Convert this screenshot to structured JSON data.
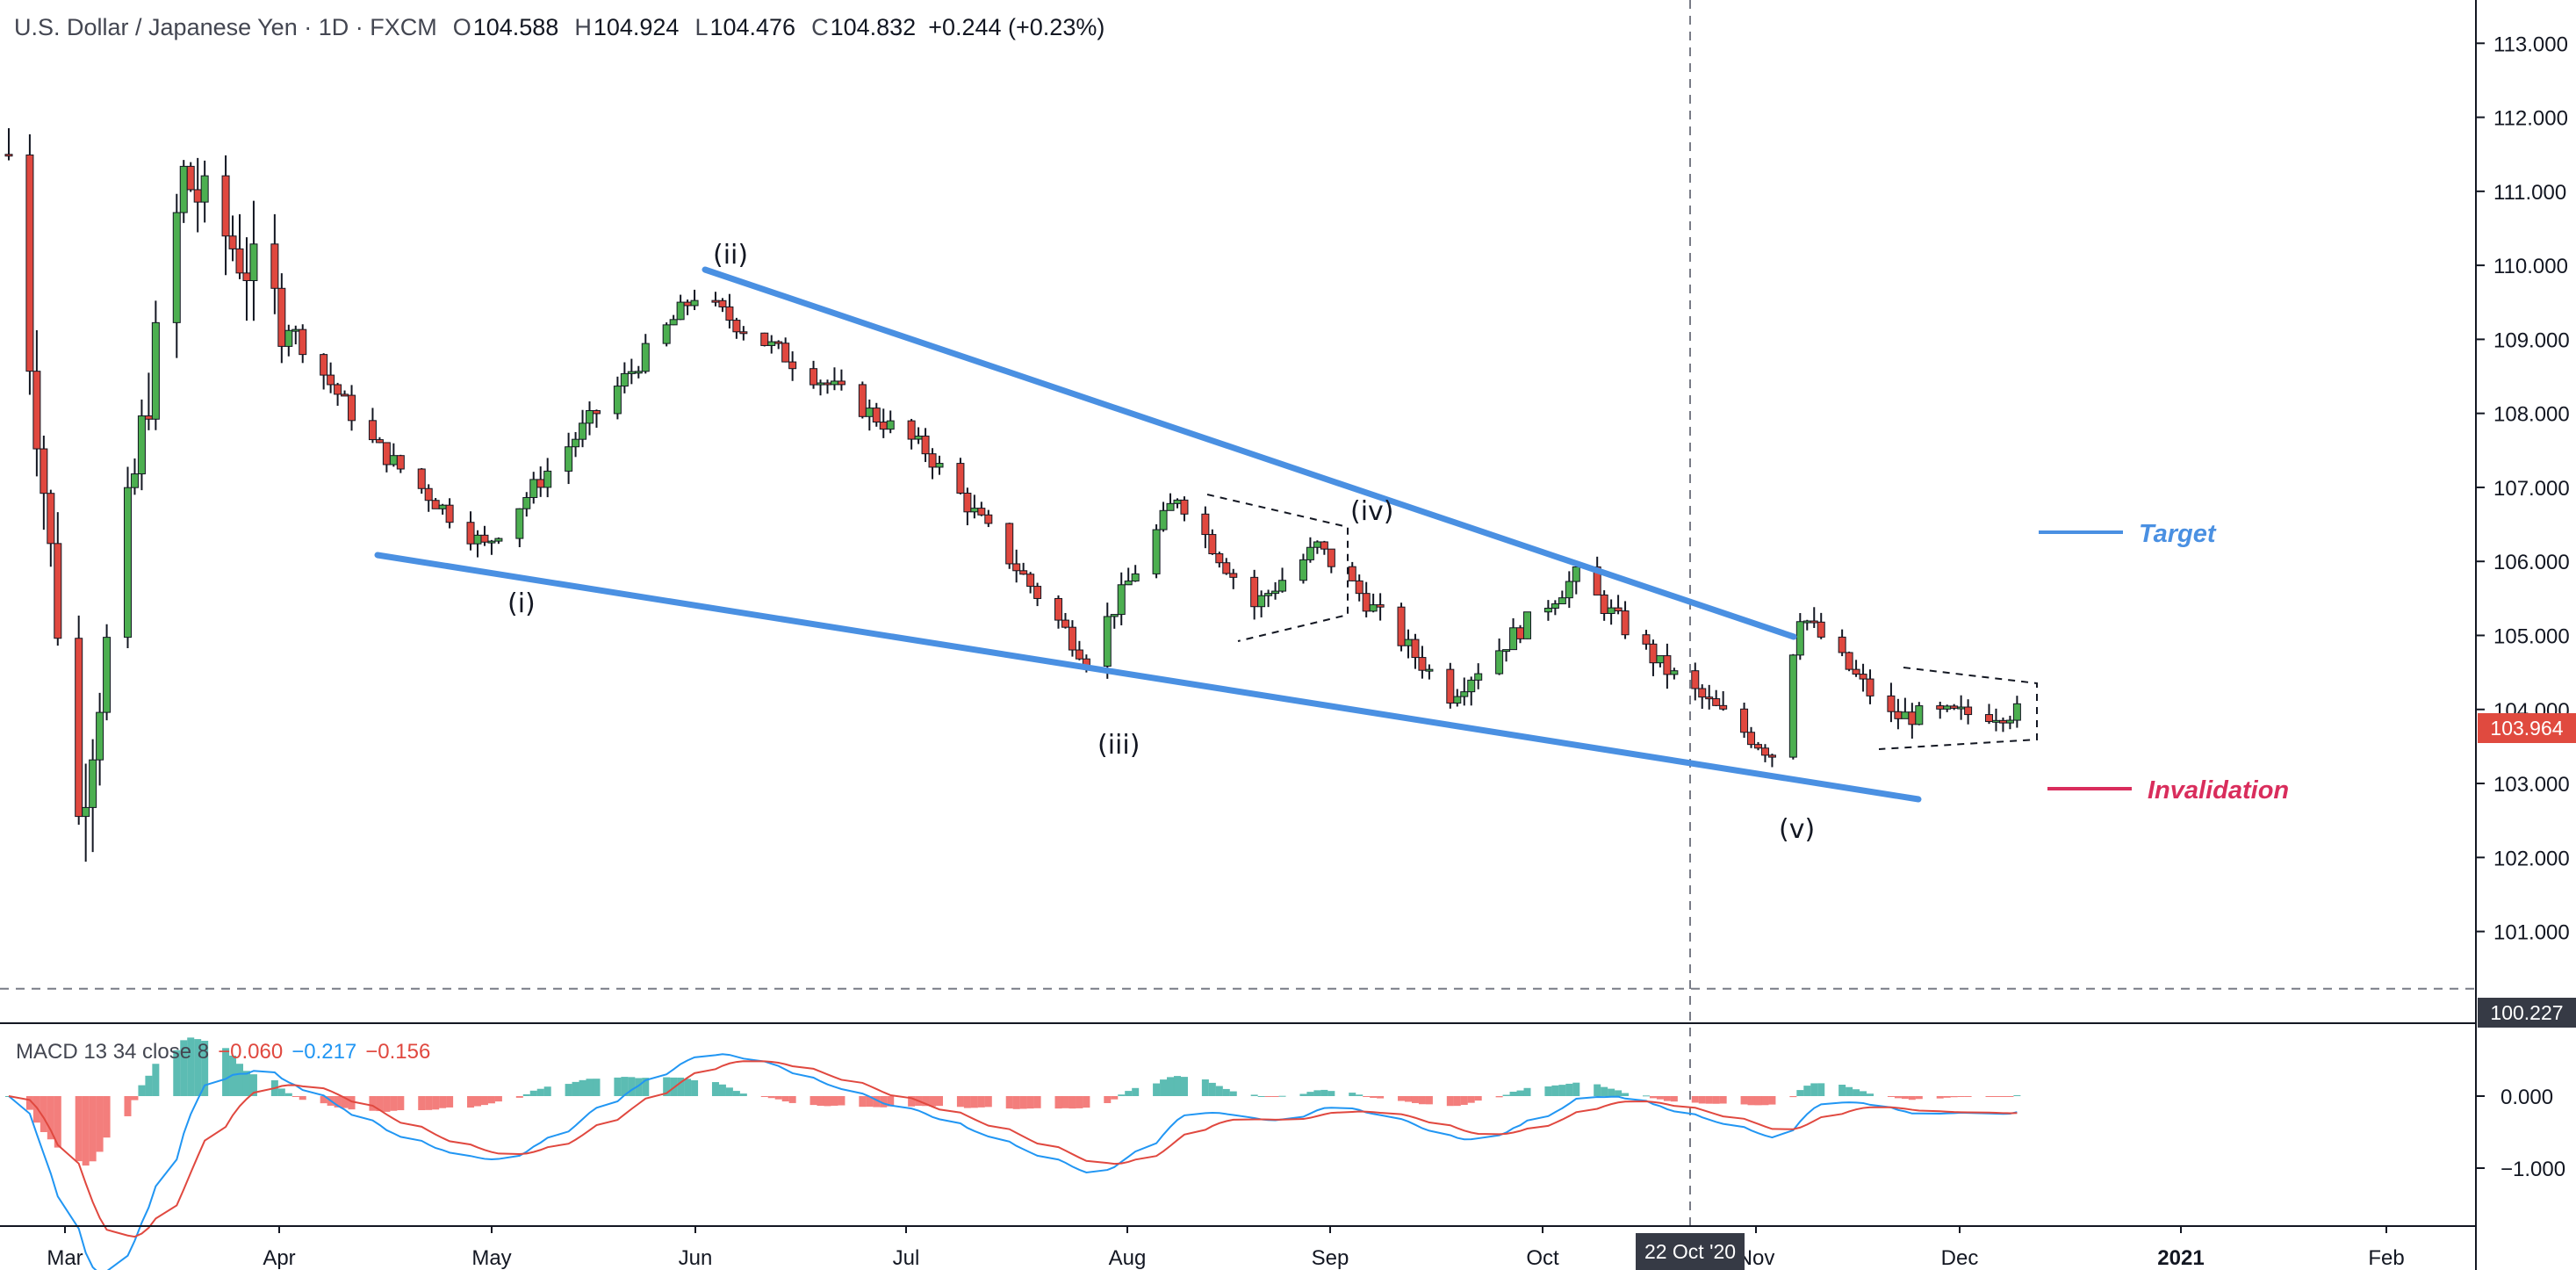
{
  "header": {
    "symbol": "U.S. Dollar / Japanese Yen · 1D · FXCM",
    "open_label": "O",
    "open": "104.588",
    "high_label": "H",
    "high": "104.924",
    "low_label": "L",
    "low": "104.476",
    "close_label": "C",
    "close": "104.832",
    "change": "+0.244 (+0.23%)"
  },
  "price_tags": {
    "last": "103.964",
    "line": "100.227"
  },
  "crosshair_date": "22 Oct '20",
  "macd": {
    "title": "MACD 13 34 close 8",
    "macd_value": "−0.060",
    "signal_value": "−0.217",
    "hist_value": "−0.156"
  },
  "colors": {
    "up": "#4caf50",
    "down": "#e0483f",
    "trend": "#4a90e2",
    "target": "#4a90e2",
    "invalidation": "#d92d5c",
    "last_tag": "#e04a3f",
    "line_tag": "#363a45"
  },
  "chart_data": {
    "type": "candlestick",
    "y_axis": {
      "min": 100.2,
      "max": 113.3,
      "ticks": [
        "113.000",
        "112.000",
        "111.000",
        "110.000",
        "109.000",
        "108.000",
        "107.000",
        "106.000",
        "105.000",
        "104.000",
        "103.000",
        "102.000",
        "101.000"
      ]
    },
    "x_axis_labels": [
      "Mar",
      "Apr",
      "May",
      "Jun",
      "Jul",
      "Aug",
      "Sep",
      "Oct",
      "Nov",
      "Dec",
      "2021",
      "Feb"
    ],
    "macd_ticks": [
      "0.000",
      "−1.000"
    ],
    "waves": [
      "(i)",
      "(ii)",
      "(iii)",
      "(iv)",
      "(v)"
    ],
    "annotations": {
      "target": "Target",
      "invalidation": "Invalidation"
    },
    "dates": [
      "2020-02-28",
      "2020-03-09",
      "2020-03-24",
      "2020-04-20",
      "2020-05-06",
      "2020-06-05",
      "2020-07-08",
      "2020-07-31",
      "2020-08-13",
      "2020-08-24",
      "2020-09-02",
      "2020-09-21",
      "2020-10-09",
      "2020-10-21",
      "2020-11-06",
      "2020-11-10",
      "2020-11-23",
      "2020-12-11"
    ],
    "key_closes": [
      111.5,
      102.5,
      111.2,
      107.6,
      106.2,
      109.6,
      107.5,
      104.7,
      106.9,
      105.4,
      106.2,
      104.2,
      105.8,
      104.6,
      103.4,
      105.3,
      103.9,
      103.964
    ],
    "trendlines": {
      "upper": [
        {
          "date": "2020-06-05",
          "price": 110.0
        },
        {
          "date": "2020-11-05",
          "price": 105.2
        }
      ],
      "lower": [
        {
          "date": "2020-04-13",
          "price": 106.3
        },
        {
          "date": "2020-11-27",
          "price": 103.0
        }
      ]
    },
    "target_level": 106.6,
    "invalidation_level": 103.2,
    "horizontal_line": 100.227
  }
}
